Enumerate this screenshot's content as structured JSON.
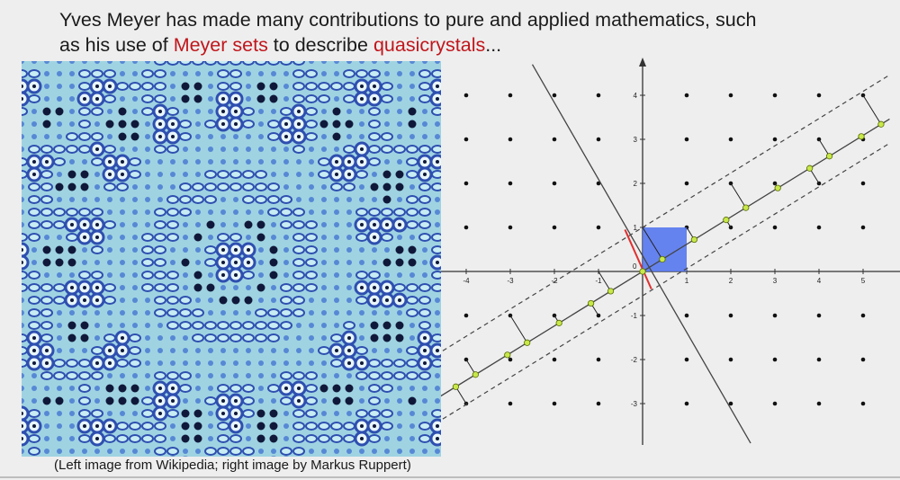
{
  "heading": {
    "line1": "Yves Meyer has made many contributions to pure and applied mathematics, such",
    "line2_prefix": "as his use of ",
    "term1": "Meyer sets",
    "line2_middle": " to describe ",
    "term2": "quasicrystals",
    "line2_suffix": "..."
  },
  "caption": "(Left image from Wikipedia; right image by Markus Ruppert)",
  "left_image": {
    "icon": "quasicrystal-tiling-image",
    "colors": {
      "background": "#9fd3e2",
      "ring_dark": "#2e4fb0",
      "ring_light": "#e9f6fa",
      "dot": "#10183a"
    }
  },
  "diagram": {
    "x_ticks": [
      "-4",
      "-3",
      "-2",
      "-1",
      "0",
      "1",
      "2",
      "3",
      "4",
      "5"
    ],
    "y_ticks": [
      "4",
      "3",
      "2",
      "1",
      "-1",
      "-2",
      "-3"
    ],
    "colors": {
      "square": "#5577ee",
      "lattice": "#111111",
      "projected_point": "#c8e84a",
      "red_segment": "#e03030"
    }
  }
}
